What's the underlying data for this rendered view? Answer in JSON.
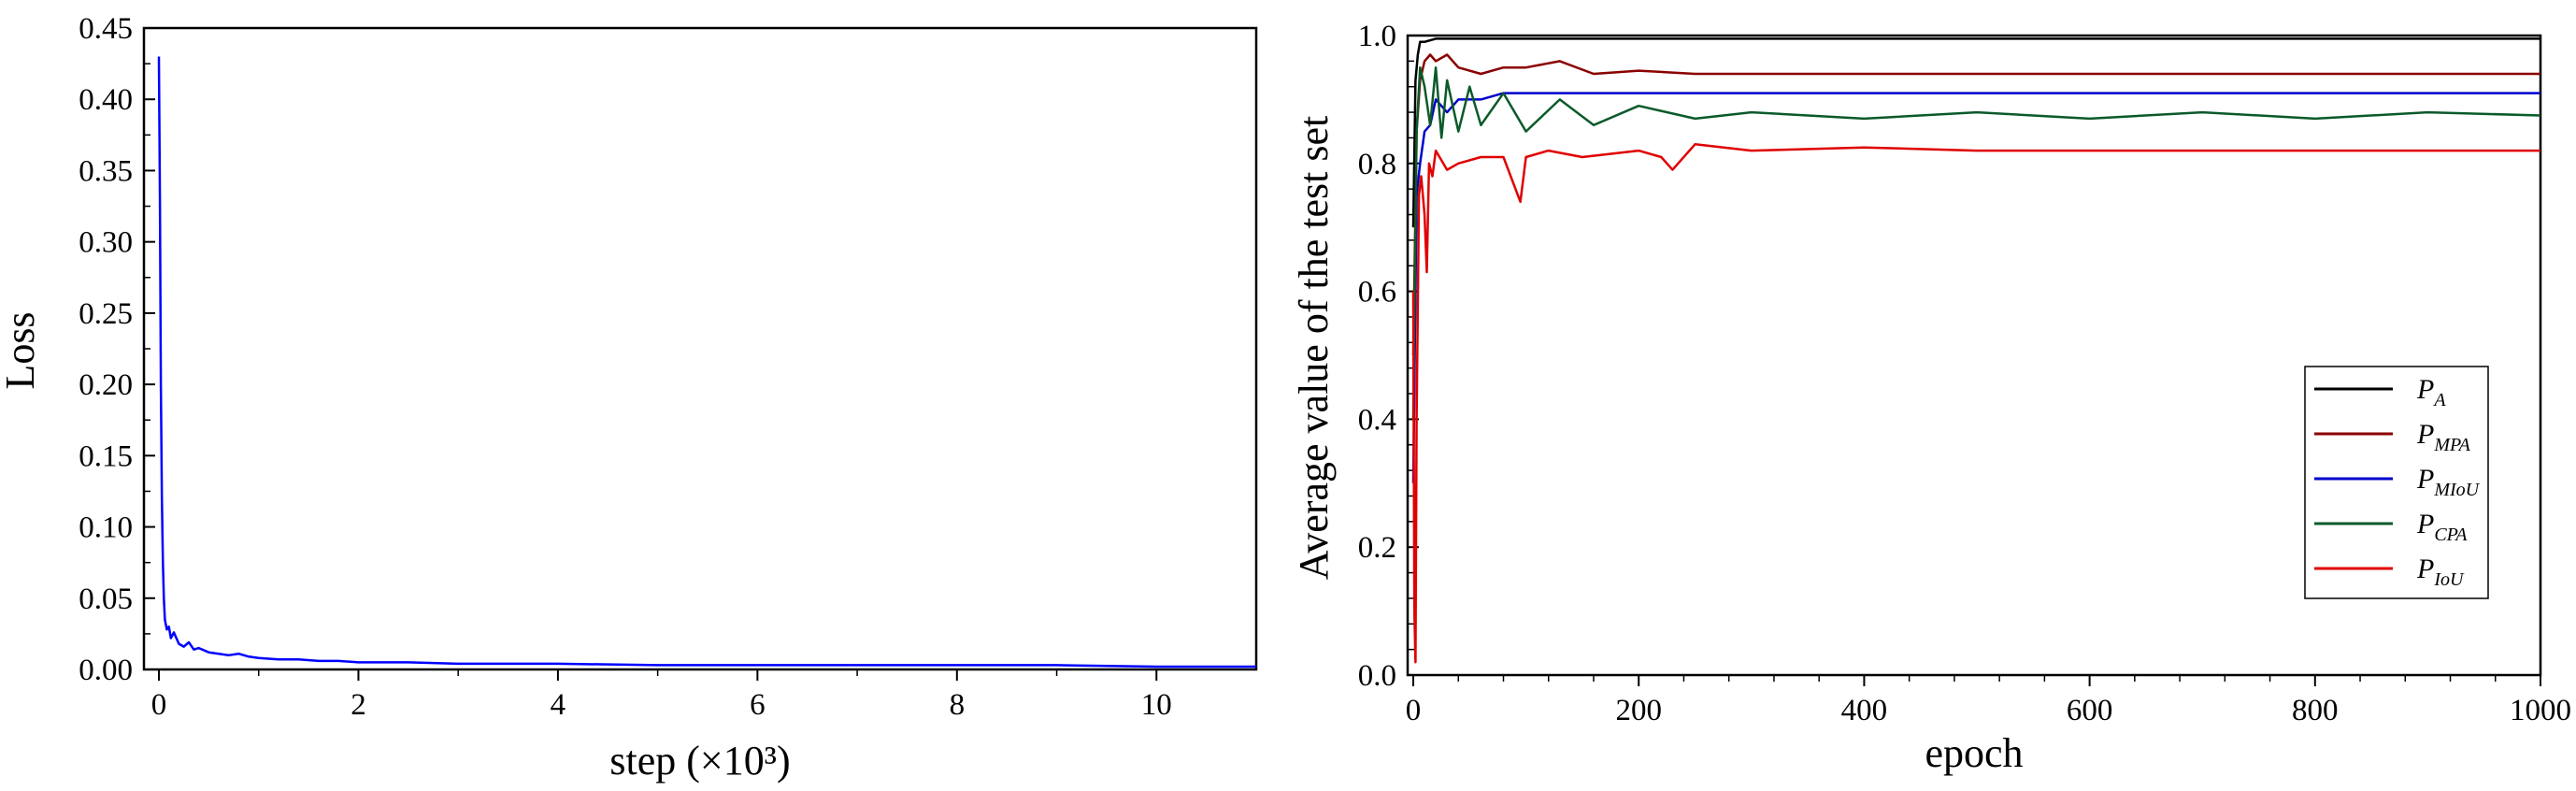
{
  "chart_data": [
    {
      "type": "line",
      "title": "",
      "xlabel": "step (×10³)",
      "ylabel": "Loss",
      "xlim": [
        -0.15,
        11
      ],
      "ylim": [
        0,
        0.45
      ],
      "xticks": [
        0,
        2,
        4,
        6,
        8,
        10
      ],
      "xtick_labels": [
        "0",
        "2",
        "4",
        "6",
        "8",
        "10"
      ],
      "yticks": [
        0,
        0.05,
        0.1,
        0.15,
        0.2,
        0.25,
        0.3,
        0.35,
        0.4,
        0.45
      ],
      "ytick_labels": [
        "0.00",
        "0.05",
        "0.10",
        "0.15",
        "0.20",
        "0.25",
        "0.30",
        "0.35",
        "0.40",
        "0.45"
      ],
      "grid": false,
      "legend": "none",
      "series": [
        {
          "color": "#0000ff",
          "x": [
            0,
            0.01,
            0.02,
            0.03,
            0.04,
            0.05,
            0.06,
            0.08,
            0.1,
            0.12,
            0.15,
            0.2,
            0.25,
            0.3,
            0.35,
            0.4,
            0.5,
            0.6,
            0.7,
            0.8,
            0.9,
            1.0,
            1.2,
            1.4,
            1.6,
            1.8,
            2.0,
            2.5,
            3.0,
            3.5,
            4.0,
            5.0,
            6.0,
            7.0,
            8.0,
            9.0,
            10.0,
            11.0
          ],
          "y": [
            0.43,
            0.33,
            0.2,
            0.12,
            0.075,
            0.05,
            0.035,
            0.028,
            0.03,
            0.022,
            0.026,
            0.018,
            0.016,
            0.019,
            0.014,
            0.015,
            0.012,
            0.011,
            0.01,
            0.011,
            0.009,
            0.008,
            0.007,
            0.007,
            0.006,
            0.006,
            0.005,
            0.005,
            0.004,
            0.004,
            0.004,
            0.003,
            0.003,
            0.003,
            0.003,
            0.003,
            0.002,
            0.002
          ]
        }
      ]
    },
    {
      "type": "line",
      "title": "",
      "xlabel": "epoch",
      "ylabel": "Average value of the test set",
      "xlim": [
        -5,
        1000
      ],
      "ylim": [
        0,
        1.0
      ],
      "xticks": [
        0,
        200,
        400,
        600,
        800,
        1000
      ],
      "xtick_labels": [
        "0",
        "200",
        "400",
        "600",
        "800",
        "1000"
      ],
      "yticks": [
        0,
        0.2,
        0.4,
        0.6,
        0.8,
        1.0
      ],
      "ytick_labels": [
        "0.0",
        "0.2",
        "0.4",
        "0.6",
        "0.8",
        "1.0"
      ],
      "grid": false,
      "legend": "right",
      "series": [
        {
          "name": "P_A",
          "label": "P",
          "subscript": "A",
          "color": "#000000",
          "x": [
            0,
            2,
            4,
            6,
            10,
            20,
            50,
            100,
            200,
            400,
            600,
            800,
            1000
          ],
          "y": [
            0.7,
            0.93,
            0.97,
            0.99,
            0.99,
            0.995,
            0.995,
            0.995,
            0.995,
            0.995,
            0.995,
            0.995,
            0.995
          ]
        },
        {
          "name": "P_MPA",
          "label": "P",
          "subscript": "MPA",
          "color": "#8b0000",
          "x": [
            0,
            3,
            6,
            10,
            15,
            20,
            30,
            40,
            60,
            80,
            100,
            130,
            160,
            200,
            250,
            300,
            400,
            500,
            600,
            700,
            800,
            900,
            1000
          ],
          "y": [
            0.5,
            0.85,
            0.93,
            0.96,
            0.97,
            0.96,
            0.97,
            0.95,
            0.94,
            0.95,
            0.95,
            0.96,
            0.94,
            0.945,
            0.94,
            0.94,
            0.94,
            0.94,
            0.94,
            0.94,
            0.94,
            0.94,
            0.94
          ]
        },
        {
          "name": "P_MIoU",
          "label": "P",
          "subscript": "MIoU",
          "color": "#0000cd",
          "x": [
            0,
            3,
            6,
            10,
            15,
            20,
            30,
            40,
            60,
            80,
            100,
            150,
            200,
            300,
            400,
            500,
            600,
            700,
            800,
            900,
            1000
          ],
          "y": [
            0.3,
            0.75,
            0.8,
            0.85,
            0.86,
            0.9,
            0.88,
            0.9,
            0.9,
            0.91,
            0.91,
            0.91,
            0.91,
            0.91,
            0.91,
            0.91,
            0.91,
            0.91,
            0.91,
            0.91,
            0.91
          ]
        },
        {
          "name": "P_CPA",
          "label": "P",
          "subscript": "CPA",
          "color": "#0b5a2a",
          "x": [
            0,
            3,
            6,
            10,
            15,
            20,
            25,
            30,
            40,
            50,
            60,
            80,
            100,
            130,
            160,
            200,
            250,
            300,
            400,
            500,
            600,
            700,
            800,
            900,
            1000
          ],
          "y": [
            0.4,
            0.85,
            0.95,
            0.92,
            0.86,
            0.95,
            0.84,
            0.93,
            0.85,
            0.92,
            0.86,
            0.91,
            0.85,
            0.9,
            0.86,
            0.89,
            0.87,
            0.88,
            0.87,
            0.88,
            0.87,
            0.88,
            0.87,
            0.88,
            0.875
          ]
        },
        {
          "name": "P_IoU",
          "label": "P",
          "subscript": "IoU",
          "color": "#e00000",
          "x": [
            0,
            1,
            2,
            3,
            5,
            7,
            10,
            12,
            14,
            17,
            20,
            30,
            40,
            60,
            80,
            95,
            100,
            120,
            150,
            200,
            220,
            230,
            250,
            300,
            400,
            500,
            600,
            700,
            800,
            900,
            1000
          ],
          "y": [
            0.6,
            0.1,
            0.02,
            0.4,
            0.75,
            0.78,
            0.72,
            0.63,
            0.8,
            0.78,
            0.82,
            0.79,
            0.8,
            0.81,
            0.81,
            0.74,
            0.81,
            0.82,
            0.81,
            0.82,
            0.81,
            0.79,
            0.83,
            0.82,
            0.825,
            0.82,
            0.82,
            0.82,
            0.82,
            0.82,
            0.82
          ]
        }
      ]
    }
  ]
}
